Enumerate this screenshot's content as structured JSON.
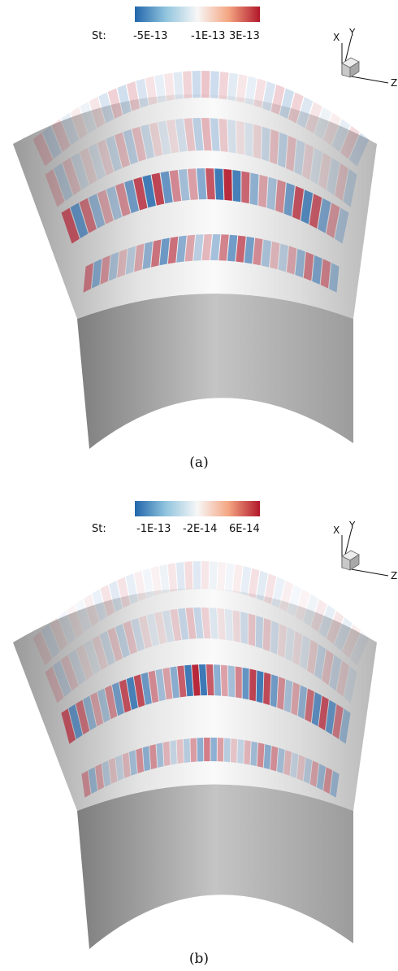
{
  "panels": [
    {
      "id": "a",
      "caption": "(a)",
      "colorbar": {
        "label": "St:",
        "ticks": [
          "-5E-13",
          "-1E-13",
          "3E-13"
        ]
      },
      "triad": {
        "x": "X",
        "y": "Y",
        "z": "Z"
      }
    },
    {
      "id": "b",
      "caption": "(b)",
      "colorbar": {
        "label": "St:",
        "ticks": [
          "-1E-13",
          "-2E-14",
          "6E-14"
        ]
      },
      "triad": {
        "x": "X",
        "y": "Y",
        "z": "Z"
      }
    }
  ],
  "colors": {
    "negative": "#2166ac",
    "neutral": "#f7f7f7",
    "positive": "#b2182b",
    "surface_dark": "#8a8a8a",
    "surface_light": "#f2f2f2"
  }
}
